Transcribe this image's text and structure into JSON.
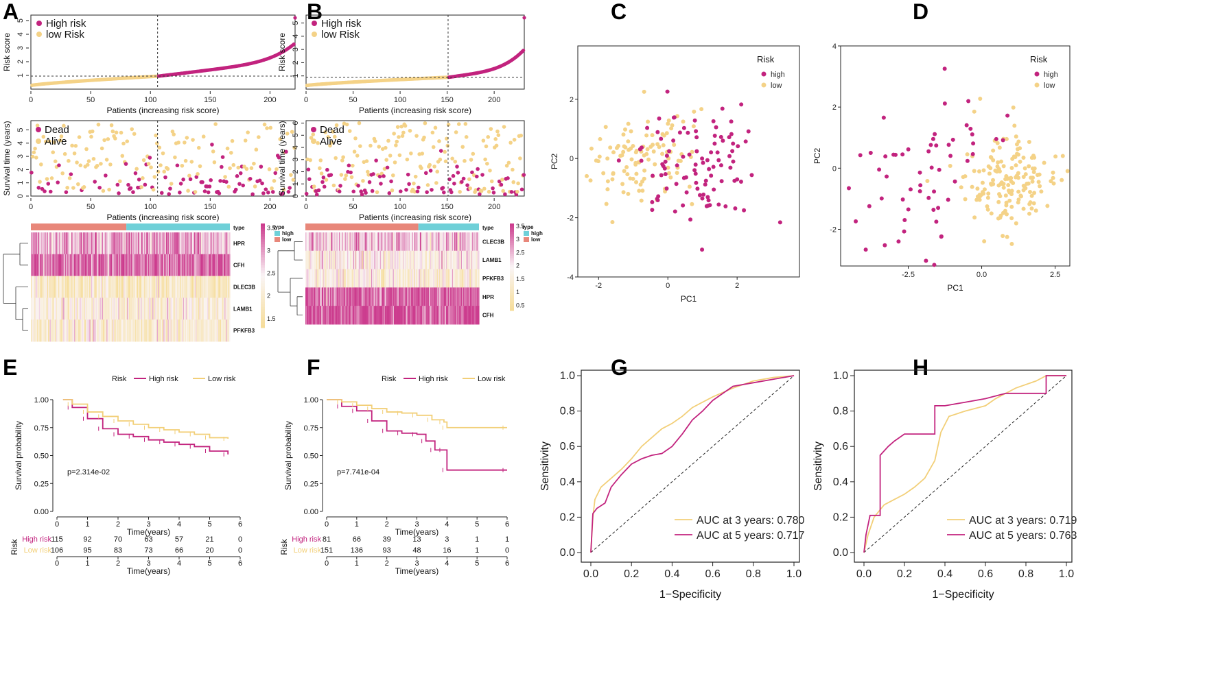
{
  "colors": {
    "high": "#c2237e",
    "low": "#f4d287",
    "lowLine": "#f2cf78",
    "heatHigh": "#6fd0d8",
    "heatLow": "#e8877a",
    "hmPink": "#cc3c8e",
    "hmYellow": "#f6dd9a"
  },
  "panels": {
    "A": "A",
    "B": "B",
    "C": "C",
    "D": "D",
    "E": "E",
    "F": "F",
    "G": "G",
    "H": "H"
  },
  "chart_data": [
    {
      "id": "A-risk",
      "type": "scatter",
      "ylabel": "Risk score",
      "xlabel": "Patients (increasing risk score)",
      "xticks": [
        "0",
        "50",
        "100",
        "150",
        "200"
      ],
      "yticks": [
        "1",
        "2",
        "3",
        "4",
        "5"
      ],
      "xlim": [
        0,
        221
      ],
      "ylim": [
        0,
        5.4
      ],
      "n": 221,
      "cutoff_index": 106,
      "cutoff_value": 0.95,
      "legend": [
        "High risk",
        "low Risk"
      ]
    },
    {
      "id": "A-surv",
      "type": "scatter",
      "ylabel": "Survival time (years)",
      "xlabel": "Patients (increasing risk score)",
      "xticks": [
        "0",
        "50",
        "100",
        "150",
        "200"
      ],
      "yticks": [
        "0",
        "1",
        "2",
        "3",
        "4",
        "5"
      ],
      "xlim": [
        0,
        221
      ],
      "ylim": [
        0,
        5.7
      ],
      "cutoff_index": 106,
      "legend": [
        "Dead",
        "Alive"
      ]
    },
    {
      "id": "A-heat",
      "type": "heatmap",
      "genes": [
        "HPR",
        "CFH",
        "DLEC3B",
        "LAMB1",
        "PFKFB3"
      ],
      "scale_ticks": [
        "3.5",
        "3",
        "2.5",
        "2",
        "1.5"
      ],
      "scale_title": "type",
      "type_legend": [
        "high",
        "low"
      ],
      "type_label": "type",
      "gene_level": [
        2.9,
        3.3,
        1.9,
        2.2,
        2.0
      ]
    },
    {
      "id": "B-risk",
      "type": "scatter",
      "ylabel": "Risk score",
      "xlabel": "Patients (increasing risk score)",
      "xticks": [
        "0",
        "50",
        "100",
        "150",
        "200"
      ],
      "yticks": [
        "1",
        "2",
        "3",
        "4",
        "5"
      ],
      "xlim": [
        0,
        232
      ],
      "ylim": [
        0,
        5.6
      ],
      "n": 232,
      "cutoff_index": 151,
      "cutoff_value": 0.9,
      "legend": [
        "High risk",
        "low Risk"
      ]
    },
    {
      "id": "B-surv",
      "type": "scatter",
      "ylabel": "Survival time (years)",
      "xlabel": "Patients (increasing risk score)",
      "xticks": [
        "0",
        "50",
        "100",
        "150",
        "200"
      ],
      "yticks": [
        "0",
        "1",
        "2",
        "3",
        "4",
        "5",
        "6"
      ],
      "xlim": [
        0,
        232
      ],
      "ylim": [
        0,
        6.2
      ],
      "cutoff_index": 151,
      "legend": [
        "Dead",
        "Alive"
      ]
    },
    {
      "id": "B-heat",
      "type": "heatmap",
      "genes": [
        "CLEC3B",
        "LAMB1",
        "PFKFB3",
        "HPR",
        "CFH"
      ],
      "scale_ticks": [
        "3.5",
        "3",
        "2.5",
        "2",
        "1.5",
        "1",
        "0.5"
      ],
      "scale_title": "type",
      "type_legend": [
        "high",
        "low"
      ],
      "type_label": "type",
      "gene_level": [
        2.4,
        1.8,
        1.6,
        3.2,
        3.5
      ]
    },
    {
      "id": "C-pca",
      "type": "scatter",
      "xlabel": "PC1",
      "ylabel": "PC2",
      "legend_title": "Risk",
      "legend": [
        "high",
        "low"
      ],
      "xticks": [
        "-2",
        "0",
        "2"
      ],
      "yticks": [
        "-4",
        "-2",
        "0",
        "2"
      ],
      "xlim": [
        -2.6,
        3.8
      ],
      "ylim": [
        -4.0,
        3.8
      ]
    },
    {
      "id": "D-pca",
      "type": "scatter",
      "xlabel": "PC1",
      "ylabel": "PC2",
      "legend_title": "Risk",
      "legend": [
        "high",
        "low"
      ],
      "xticks": [
        "-2.5",
        "0.0",
        "2.5"
      ],
      "yticks": [
        "-2",
        "0",
        "2",
        "4"
      ],
      "xlim": [
        -4.8,
        3.0
      ],
      "ylim": [
        -3.2,
        4.0
      ]
    },
    {
      "id": "E-km",
      "type": "line",
      "legend_title": "Risk",
      "legend": [
        "High risk",
        "Low risk"
      ],
      "xlabel": "Time(years)",
      "ylabel": "Survival probability",
      "xticks": [
        "0",
        "1",
        "2",
        "3",
        "4",
        "5",
        "6"
      ],
      "yticks": [
        "0.00",
        "0.25",
        "0.50",
        "0.75",
        "1.00"
      ],
      "xlim": [
        0,
        6
      ],
      "ylim": [
        0,
        1
      ],
      "pvalue": "p=2.314e-02",
      "series": [
        {
          "name": "High risk",
          "x": [
            0.2,
            0.5,
            1.0,
            1.5,
            2.0,
            2.5,
            3.0,
            3.5,
            4.0,
            4.5,
            5.0,
            5.6
          ],
          "y": [
            1.0,
            0.93,
            0.83,
            0.74,
            0.69,
            0.67,
            0.64,
            0.62,
            0.6,
            0.58,
            0.54,
            0.51
          ]
        },
        {
          "name": "Low risk",
          "x": [
            0.2,
            0.5,
            1.0,
            1.5,
            2.0,
            2.5,
            3.0,
            3.5,
            4.0,
            4.5,
            5.0,
            5.6
          ],
          "y": [
            1.0,
            0.96,
            0.89,
            0.85,
            0.81,
            0.78,
            0.75,
            0.73,
            0.71,
            0.69,
            0.66,
            0.65
          ]
        }
      ],
      "risk_table": {
        "title": "Risk",
        "rows": [
          {
            "label": "High risk",
            "values": [
              "115",
              "92",
              "70",
              "63",
              "57",
              "21",
              "0"
            ]
          },
          {
            "label": "Low risk",
            "values": [
              "106",
              "95",
              "83",
              "73",
              "66",
              "20",
              "0"
            ]
          }
        ]
      }
    },
    {
      "id": "F-km",
      "type": "line",
      "legend_title": "Risk",
      "legend": [
        "High risk",
        "Low risk"
      ],
      "xlabel": "Time(years)",
      "ylabel": "Survival probability",
      "xticks": [
        "0",
        "1",
        "2",
        "3",
        "4",
        "5",
        "6"
      ],
      "yticks": [
        "0.00",
        "0.25",
        "0.50",
        "0.75",
        "1.00"
      ],
      "xlim": [
        0,
        6
      ],
      "ylim": [
        0,
        1
      ],
      "pvalue": "p=7.741e-04",
      "series": [
        {
          "name": "High risk",
          "x": [
            0,
            0.5,
            1.0,
            1.5,
            2.0,
            2.5,
            3.0,
            3.3,
            3.6,
            3.9,
            4.0,
            6.0
          ],
          "y": [
            1.0,
            0.94,
            0.9,
            0.81,
            0.72,
            0.7,
            0.69,
            0.63,
            0.55,
            0.55,
            0.37,
            0.37
          ]
        },
        {
          "name": "Low risk",
          "x": [
            0,
            0.5,
            1.0,
            1.5,
            2.0,
            2.5,
            3.0,
            3.5,
            3.9,
            4.0,
            6.0
          ],
          "y": [
            1.0,
            0.98,
            0.95,
            0.92,
            0.89,
            0.88,
            0.86,
            0.82,
            0.8,
            0.75,
            0.75
          ]
        }
      ],
      "risk_table": {
        "title": "Risk",
        "rows": [
          {
            "label": "High risk",
            "values": [
              "81",
              "66",
              "39",
              "13",
              "3",
              "1",
              "1"
            ]
          },
          {
            "label": "Low risk",
            "values": [
              "151",
              "136",
              "93",
              "48",
              "16",
              "1",
              "0"
            ]
          }
        ]
      }
    },
    {
      "id": "G-roc",
      "type": "line",
      "xlabel": "1−Specificity",
      "ylabel": "Sensitivity",
      "xticks": [
        "0.0",
        "0.2",
        "0.4",
        "0.6",
        "0.8",
        "1.0"
      ],
      "yticks": [
        "0.0",
        "0.2",
        "0.4",
        "0.6",
        "0.8",
        "1.0"
      ],
      "xlim": [
        0,
        1
      ],
      "ylim": [
        0,
        1
      ],
      "series": [
        {
          "name": "AUC at 3 years: 0.780",
          "x": [
            0,
            0.01,
            0.02,
            0.05,
            0.1,
            0.15,
            0.2,
            0.25,
            0.3,
            0.35,
            0.4,
            0.45,
            0.5,
            0.6,
            0.7,
            0.8,
            0.9,
            1.0
          ],
          "y": [
            0,
            0.2,
            0.3,
            0.37,
            0.42,
            0.47,
            0.53,
            0.6,
            0.65,
            0.7,
            0.73,
            0.77,
            0.82,
            0.88,
            0.93,
            0.97,
            0.99,
            1.0
          ]
        },
        {
          "name": "AUC at 5 years: 0.717",
          "x": [
            0,
            0.01,
            0.03,
            0.07,
            0.1,
            0.15,
            0.2,
            0.25,
            0.3,
            0.35,
            0.4,
            0.45,
            0.5,
            0.55,
            0.6,
            0.65,
            0.7,
            0.8,
            0.9,
            1.0
          ],
          "y": [
            0,
            0.22,
            0.25,
            0.28,
            0.37,
            0.44,
            0.5,
            0.53,
            0.55,
            0.56,
            0.6,
            0.67,
            0.75,
            0.8,
            0.86,
            0.9,
            0.94,
            0.96,
            0.98,
            1.0
          ]
        }
      ],
      "legend": [
        "AUC at 3 years: 0.780",
        "AUC at 5 years: 0.717"
      ]
    },
    {
      "id": "H-roc",
      "type": "line",
      "xlabel": "1−Specificity",
      "ylabel": "Sensitivity",
      "xticks": [
        "0.0",
        "0.2",
        "0.4",
        "0.6",
        "0.8",
        "1.0"
      ],
      "yticks": [
        "0.0",
        "0.2",
        "0.4",
        "0.6",
        "0.8",
        "1.0"
      ],
      "xlim": [
        0,
        1
      ],
      "ylim": [
        0,
        1
      ],
      "series": [
        {
          "name": "AUC at 3 years: 0.719",
          "x": [
            0,
            0.02,
            0.05,
            0.1,
            0.15,
            0.2,
            0.25,
            0.3,
            0.35,
            0.38,
            0.42,
            0.5,
            0.6,
            0.65,
            0.7,
            0.75,
            0.85,
            0.9,
            1.0
          ],
          "y": [
            0,
            0.1,
            0.2,
            0.27,
            0.3,
            0.33,
            0.37,
            0.42,
            0.52,
            0.68,
            0.77,
            0.8,
            0.83,
            0.87,
            0.9,
            0.93,
            0.97,
            1.0,
            1.0
          ]
        },
        {
          "name": "AUC at 5 years: 0.763",
          "x": [
            0,
            0.01,
            0.03,
            0.08,
            0.08,
            0.12,
            0.15,
            0.2,
            0.25,
            0.3,
            0.35,
            0.35,
            0.4,
            0.5,
            0.6,
            0.7,
            0.8,
            0.9,
            0.9,
            1.0
          ],
          "y": [
            0,
            0.1,
            0.21,
            0.21,
            0.55,
            0.6,
            0.63,
            0.67,
            0.67,
            0.67,
            0.67,
            0.83,
            0.83,
            0.85,
            0.87,
            0.9,
            0.9,
            0.9,
            1.0,
            1.0
          ]
        }
      ],
      "legend": [
        "AUC at 3 years: 0.719",
        "AUC at 5 years: 0.763"
      ]
    }
  ]
}
